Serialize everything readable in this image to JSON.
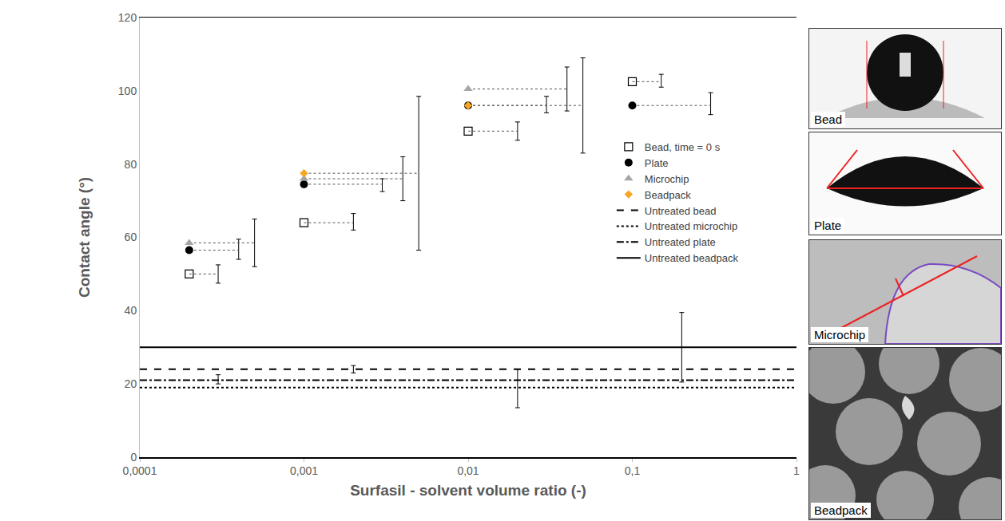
{
  "chart_data": {
    "type": "scatter",
    "x_label": "Surfasil - solvent volume ratio (-)",
    "y_label": "Contact angle (°)",
    "log": "x",
    "grid": false,
    "legend": "right",
    "xlim": [
      0.0001,
      1
    ],
    "xticks": [
      {
        "value": 0.0001,
        "label": "0,0001"
      },
      {
        "value": 0.001,
        "label": "0,001"
      },
      {
        "value": 0.01,
        "label": "0,01"
      },
      {
        "value": 0.1,
        "label": "0,1"
      },
      1
    ],
    "ylim": [
      0,
      120
    ],
    "yticks": [
      0,
      20,
      40,
      60,
      80,
      100,
      120
    ],
    "series": [
      {
        "name": "Bead, time = 0 s",
        "type": "scatter",
        "color": "#000000",
        "marker": "square-open",
        "x": [
          0.0002,
          0.001,
          0.01,
          0.1
        ],
        "values": [
          50,
          64,
          89,
          102.5
        ],
        "error_x": [
          0.0003,
          0.002,
          0.02,
          0.15
        ],
        "error_low": [
          47.5,
          62,
          86.5,
          101
        ],
        "error_high": [
          52.5,
          66.5,
          91.5,
          104.5
        ]
      },
      {
        "name": "Plate",
        "type": "scatter",
        "color": "#000000",
        "marker": "circle",
        "x": [
          0.0002,
          0.001,
          0.01,
          0.1
        ],
        "values": [
          56.5,
          74.5,
          96,
          96
        ],
        "error_x": [
          0.0004,
          0.003,
          0.03,
          0.3
        ],
        "error_low": [
          54,
          72.5,
          94,
          93.5
        ],
        "error_high": [
          59.5,
          76,
          98.5,
          99.5
        ]
      },
      {
        "name": "Microchip",
        "type": "scatter",
        "color": "#a6a6a6",
        "marker": "triangle-up",
        "x": [
          0.0002,
          0.001,
          0.01
        ],
        "values": [
          58.5,
          76,
          100.5
        ],
        "error_x": [
          0.0005,
          0.004,
          0.04
        ],
        "error_low": [
          52,
          70,
          94.5
        ],
        "error_high": [
          65,
          82,
          106.5
        ]
      },
      {
        "name": "Beadpack",
        "type": "scatter",
        "color": "#f5a623",
        "marker": "diamond",
        "x": [
          0.001,
          0.01
        ],
        "values": [
          77.5,
          96
        ],
        "error_x": [
          0.005,
          0.05
        ],
        "error_low": [
          56.5,
          83
        ],
        "error_high": [
          98.5,
          109
        ]
      },
      {
        "name": "Untreated bead",
        "type": "hline",
        "color": "#000000",
        "line_style": "dashed",
        "values": [
          24
        ],
        "error_x": [
          0.002
        ],
        "error_low": [
          23
        ],
        "error_high": [
          25
        ]
      },
      {
        "name": "Untreated microchip",
        "type": "hline",
        "color": "#000000",
        "line_style": "dotted",
        "values": [
          19
        ],
        "error_x": [
          0.02
        ],
        "error_low": [
          13.5
        ],
        "error_high": [
          24
        ]
      },
      {
        "name": "Untreated plate",
        "type": "hline",
        "color": "#000000",
        "line_style": "dashdot",
        "values": [
          21
        ],
        "error_x": [
          0.0003
        ],
        "error_low": [
          20
        ],
        "error_high": [
          22.5
        ]
      },
      {
        "name": "Untreated beadpack",
        "type": "hline",
        "color": "#000000",
        "line_style": "solid",
        "values": [
          30
        ],
        "error_x": [
          0.2
        ],
        "error_low": [
          20.5
        ],
        "error_high": [
          39.5
        ]
      }
    ],
    "panels": [
      "Bead",
      "Plate",
      "Microchip",
      "Beadpack"
    ]
  }
}
